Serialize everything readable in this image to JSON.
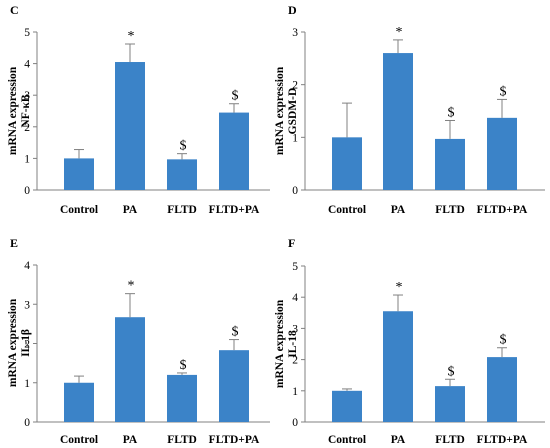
{
  "chart_data": [
    {
      "type": "bar",
      "panel": "C",
      "categories": [
        "Control",
        "PA",
        "FLTD",
        "FLTD+PA"
      ],
      "values": [
        1.0,
        4.05,
        0.97,
        2.45
      ],
      "errors": [
        0.28,
        0.57,
        0.18,
        0.28
      ],
      "annotations": [
        "",
        "*",
        "$",
        "$"
      ],
      "ylabel_lines": [
        "mRNA expression",
        "NF-κB"
      ],
      "ylim": [
        0,
        5
      ],
      "yticks": [
        "0",
        "1",
        "2",
        "3",
        "4",
        "5"
      ],
      "color": "#3b83c8"
    },
    {
      "type": "bar",
      "panel": "D",
      "categories": [
        "Control",
        "PA",
        "FLTD",
        "FLTD+PA"
      ],
      "values": [
        1.0,
        2.6,
        0.97,
        1.37
      ],
      "errors": [
        0.65,
        0.25,
        0.35,
        0.35
      ],
      "annotations": [
        "",
        "*",
        "$",
        "$"
      ],
      "ylabel_lines": [
        "mRNA expression",
        "GSDM-D"
      ],
      "ylim": [
        0,
        3
      ],
      "yticks": [
        "0",
        "1",
        "2",
        "3"
      ],
      "color": "#3b83c8"
    },
    {
      "type": "bar",
      "panel": "E",
      "categories": [
        "Control",
        "PA",
        "FLTD",
        "FLTD+PA"
      ],
      "values": [
        1.0,
        2.67,
        1.2,
        1.83
      ],
      "errors": [
        0.17,
        0.6,
        0.05,
        0.27
      ],
      "annotations": [
        "",
        "*",
        "$",
        "$"
      ],
      "ylabel_lines": [
        "mRNA expression",
        "IL-1β"
      ],
      "ylim": [
        0,
        4
      ],
      "yticks": [
        "0",
        "1",
        "2",
        "3",
        "4"
      ],
      "color": "#3b83c8"
    },
    {
      "type": "bar",
      "panel": "F",
      "categories": [
        "Control",
        "PA",
        "FLTD",
        "FLTD+PA"
      ],
      "values": [
        1.0,
        3.55,
        1.15,
        2.08
      ],
      "errors": [
        0.06,
        0.52,
        0.22,
        0.3
      ],
      "annotations": [
        "",
        "*",
        "$",
        "$"
      ],
      "ylabel_lines": [
        "mRNA expression",
        "IL-18"
      ],
      "ylim": [
        0,
        5
      ],
      "yticks": [
        "0",
        "1",
        "2",
        "3",
        "4",
        "5"
      ],
      "color": "#3b83c8"
    }
  ]
}
